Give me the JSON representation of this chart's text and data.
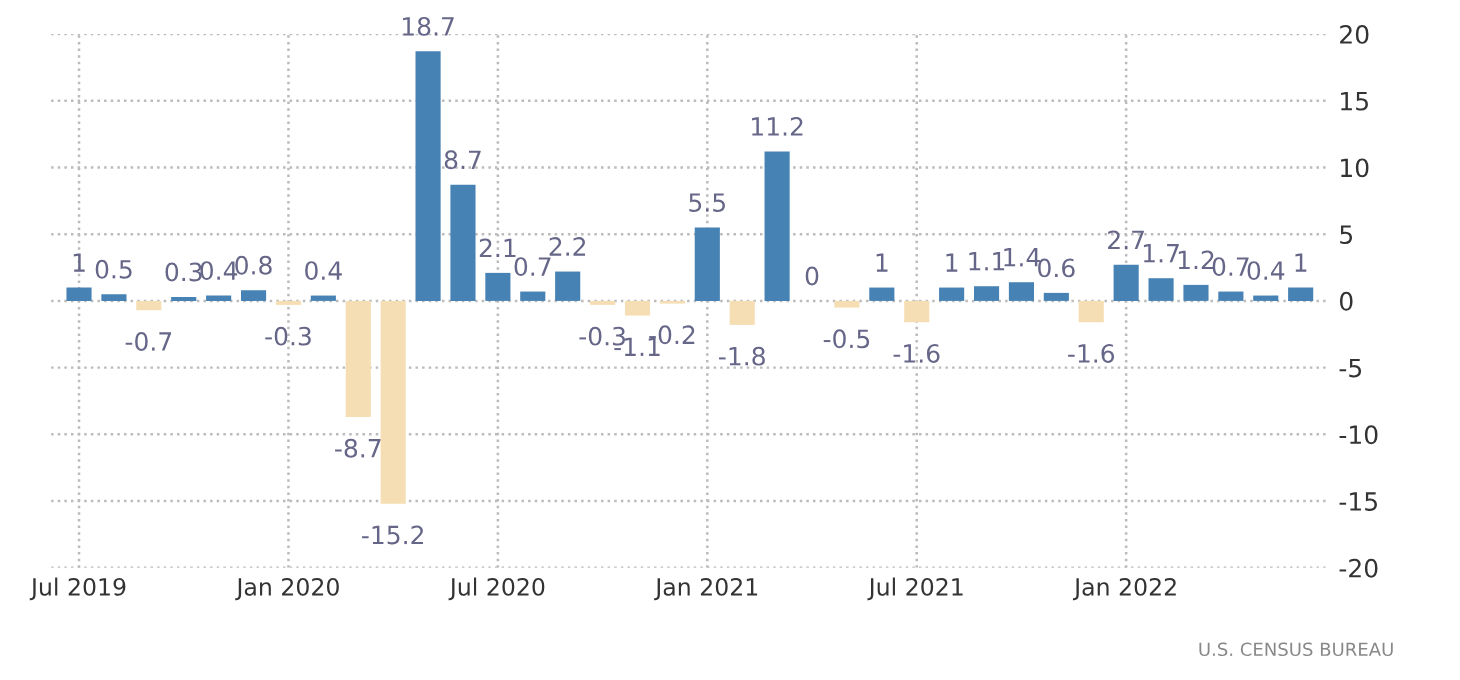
{
  "chart_data": {
    "type": "bar",
    "categories": [
      "Jul 2019",
      null,
      null,
      null,
      null,
      null,
      "Jan 2020",
      null,
      null,
      null,
      null,
      null,
      "Jul 2020",
      null,
      null,
      null,
      null,
      null,
      "Jan 2021",
      null,
      null,
      null,
      null,
      null,
      "Jul 2021",
      null,
      null,
      null,
      null,
      null,
      "Jan 2022",
      null,
      null,
      null,
      null,
      null
    ],
    "values": [
      1,
      0.5,
      -0.7,
      0.3,
      0.4,
      0.8,
      -0.3,
      0.4,
      -8.7,
      -15.2,
      18.7,
      8.7,
      2.1,
      0.7,
      2.2,
      -0.3,
      -1.1,
      -0.2,
      5.5,
      -1.8,
      11.2,
      0,
      -0.5,
      1,
      -1.6,
      1,
      1.1,
      1.4,
      0.6,
      -1.6,
      2.7,
      1.7,
      1.2,
      0.7,
      0.4,
      1
    ],
    "colors": [
      "#4682b4",
      "#4682b4",
      "#f5deb3",
      "#4682b4",
      "#4682b4",
      "#4682b4",
      "#f5deb3",
      "#4682b4",
      "#f5deb3",
      "#f5deb3",
      "#4682b4",
      "#4682b4",
      "#4682b4",
      "#4682b4",
      "#4682b4",
      "#f5deb3",
      "#f5deb3",
      "#f5deb3",
      "#4682b4",
      "#f5deb3",
      "#4682b4",
      "#4682b4",
      "#f5deb3",
      "#4682b4",
      "#f5deb3",
      "#4682b4",
      "#4682b4",
      "#4682b4",
      "#4682b4",
      "#f5deb3",
      "#4682b4",
      "#4682b4",
      "#4682b4",
      "#4682b4",
      "#4682b4",
      "#4682b4"
    ],
    "ylim": [
      -20,
      20
    ],
    "yticks": [
      -20,
      -15,
      -10,
      -5,
      0,
      5,
      10,
      15,
      20
    ],
    "grid": true,
    "data_labels": true,
    "annotations": [
      "U.S. CENSUS BUREAU"
    ]
  }
}
